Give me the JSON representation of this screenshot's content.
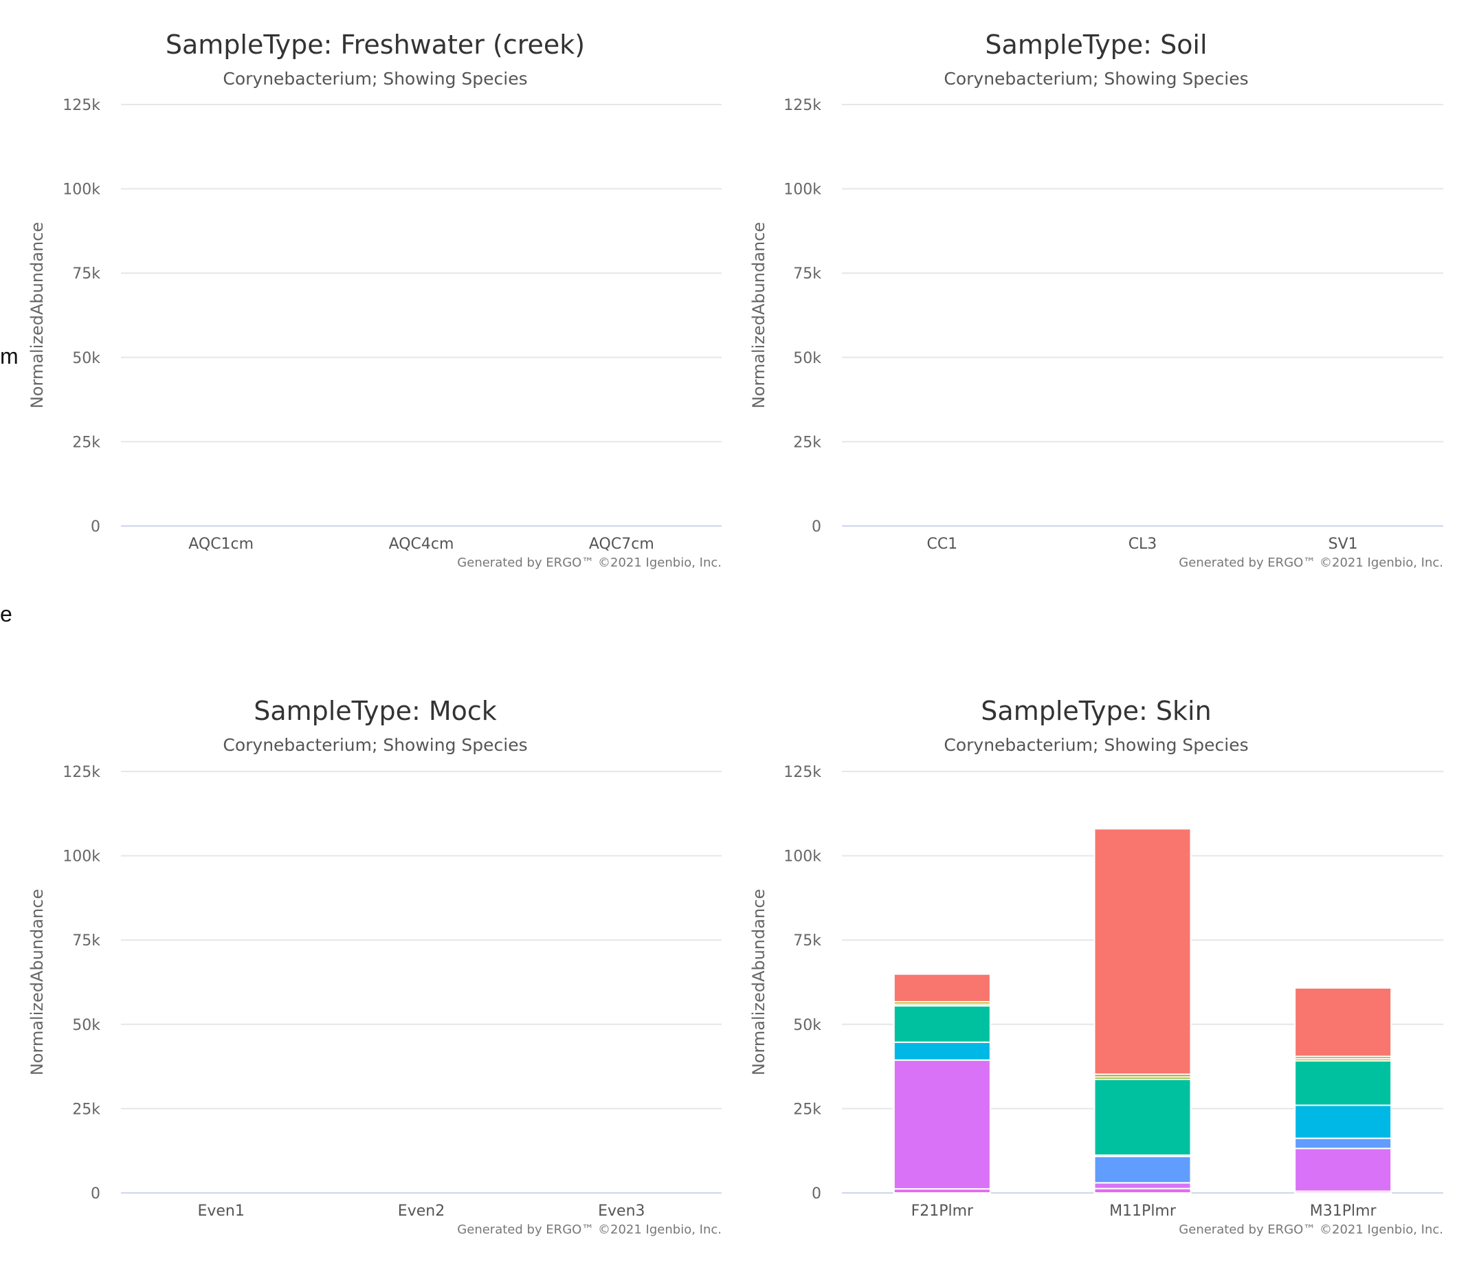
{
  "edge_fragments": [
    "m",
    "e"
  ],
  "chart_data": [
    {
      "type": "bar",
      "title": "SampleType: Freshwater (creek)",
      "subtitle": "Corynebacterium; Showing Species",
      "ylabel": "NormalizedAbundance",
      "ylim": [
        0,
        125000
      ],
      "yticks": [
        "0",
        "25k",
        "50k",
        "75k",
        "100k",
        "125k"
      ],
      "categories": [
        "AQC1cm",
        "AQC4cm",
        "AQC7cm"
      ],
      "series": [],
      "credit": "Generated by ERGO™ ©2021 Igenbio, Inc."
    },
    {
      "type": "bar",
      "title": "SampleType: Soil",
      "subtitle": "Corynebacterium; Showing Species",
      "ylabel": "NormalizedAbundance",
      "ylim": [
        0,
        125000
      ],
      "yticks": [
        "0",
        "25k",
        "50k",
        "75k",
        "100k",
        "125k"
      ],
      "categories": [
        "CC1",
        "CL3",
        "SV1"
      ],
      "series": [],
      "credit": "Generated by ERGO™ ©2021 Igenbio, Inc."
    },
    {
      "type": "bar",
      "title": "SampleType: Mock",
      "subtitle": "Corynebacterium; Showing Species",
      "ylabel": "NormalizedAbundance",
      "ylim": [
        0,
        125000
      ],
      "yticks": [
        "0",
        "25k",
        "50k",
        "75k",
        "100k",
        "125k"
      ],
      "categories": [
        "Even1",
        "Even2",
        "Even3"
      ],
      "series": [],
      "credit": "Generated by ERGO™ ©2021 Igenbio, Inc."
    },
    {
      "type": "bar",
      "stacked": true,
      "title": "SampleType: Skin",
      "subtitle": "Corynebacterium; Showing Species",
      "ylabel": "NormalizedAbundance",
      "ylim": [
        0,
        125000
      ],
      "yticks": [
        "0",
        "25k",
        "50k",
        "75k",
        "100k",
        "125k"
      ],
      "categories": [
        "F21Plmr",
        "M11Plmr",
        "M31Plmr"
      ],
      "series": [
        {
          "color": "#E06CF0",
          "values": [
            1200,
            1300,
            500
          ]
        },
        {
          "color": "#D972F7",
          "values": [
            38200,
            1700,
            12700
          ]
        },
        {
          "color": "#619CFF",
          "values": [
            0,
            7800,
            3000
          ]
        },
        {
          "color": "#00B8E5",
          "values": [
            5300,
            400,
            9800
          ]
        },
        {
          "color": "#00C19F",
          "values": [
            10800,
            22500,
            13200
          ]
        },
        {
          "color": "#7CAE00",
          "values": [
            500,
            700,
            600
          ]
        },
        {
          "color": "#C49A00",
          "values": [
            700,
            800,
            700
          ]
        },
        {
          "color": "#F8766D",
          "values": [
            8200,
            72800,
            20300
          ]
        }
      ],
      "credit": "Generated by ERGO™ ©2021 Igenbio, Inc."
    }
  ]
}
